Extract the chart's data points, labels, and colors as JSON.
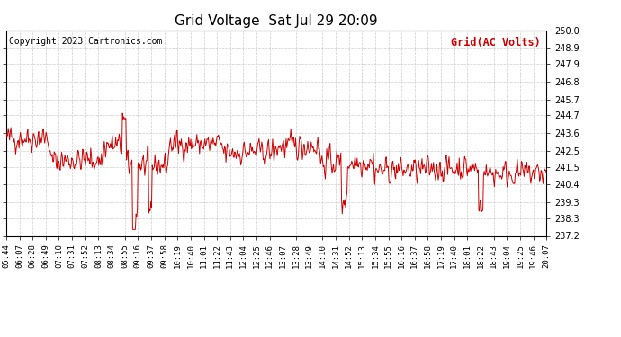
{
  "title": "Grid Voltage  Sat Jul 29 20:09",
  "legend_label": "Grid(AC Volts)",
  "copyright": "Copyright 2023 Cartronics.com",
  "line_color": "#cc0000",
  "background_color": "#ffffff",
  "plot_bg_color": "#ffffff",
  "grid_color": "#cccccc",
  "ylim": [
    237.2,
    250.0
  ],
  "yticks": [
    237.2,
    238.3,
    239.3,
    240.4,
    241.5,
    242.5,
    243.6,
    244.7,
    245.7,
    246.8,
    247.9,
    248.9,
    250.0
  ],
  "x_labels": [
    "05:44",
    "06:07",
    "06:28",
    "06:49",
    "07:10",
    "07:31",
    "07:52",
    "08:13",
    "08:34",
    "08:55",
    "09:16",
    "09:37",
    "09:58",
    "10:19",
    "10:40",
    "11:01",
    "11:22",
    "11:43",
    "12:04",
    "12:25",
    "12:46",
    "13:07",
    "13:28",
    "13:49",
    "14:10",
    "14:31",
    "14:52",
    "15:13",
    "15:34",
    "15:55",
    "16:16",
    "16:37",
    "16:58",
    "17:19",
    "17:40",
    "18:01",
    "18:22",
    "18:43",
    "19:04",
    "19:25",
    "19:46",
    "20:07"
  ],
  "title_fontsize": 11,
  "label_fontsize": 6.5,
  "legend_fontsize": 8.5,
  "copyright_fontsize": 7
}
